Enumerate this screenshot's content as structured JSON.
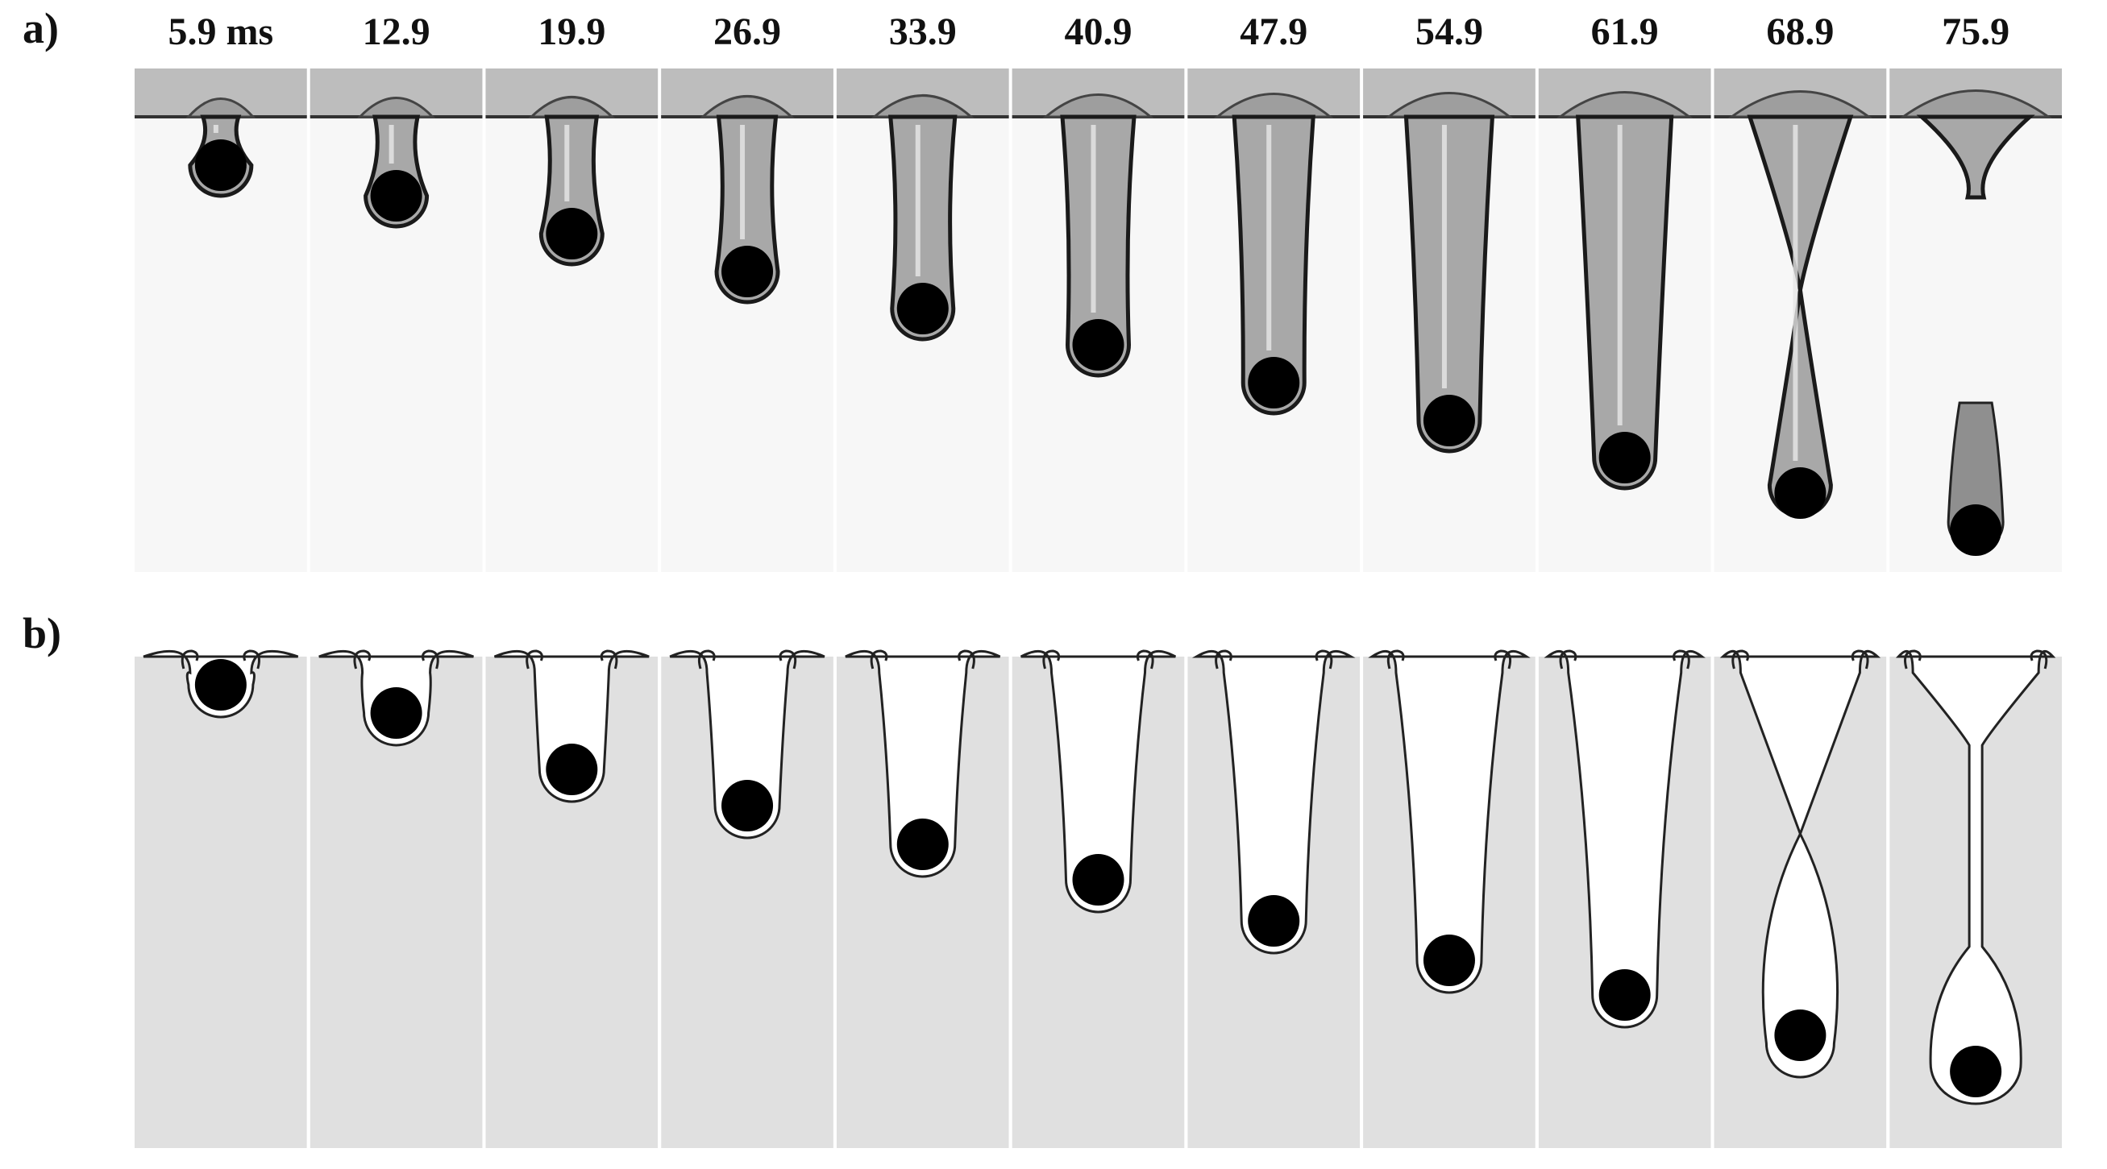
{
  "figure": {
    "panel_a_label": "a)",
    "panel_b_label": "b)",
    "time_labels": [
      "5.9 ms",
      "12.9",
      "19.9",
      "26.9",
      "33.9",
      "40.9",
      "47.9",
      "54.9",
      "61.9",
      "68.9",
      "75.9"
    ]
  },
  "colors": {
    "fluid_gray": "#e0e0e0",
    "sphere": "#000000",
    "outline": "#222222",
    "surface_band": "#bdbdbd"
  }
}
